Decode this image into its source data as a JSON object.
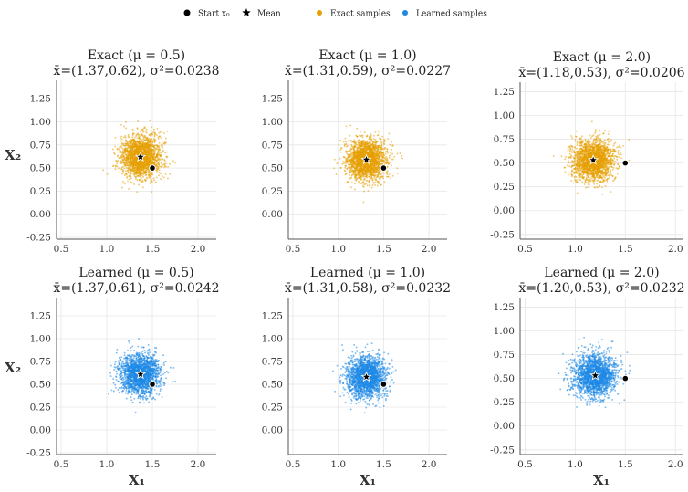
{
  "legend": [
    {
      "label": "Start x₀",
      "marker": "dot",
      "color": "#000000"
    },
    {
      "label": "Mean",
      "marker": "star",
      "color": "#000000"
    },
    {
      "label": "Exact samples",
      "marker": "dot",
      "color": "#E69F00"
    },
    {
      "label": "Learned samples",
      "marker": "dot",
      "color": "#1E88E5"
    }
  ],
  "colors": {
    "exact": "#E69F00",
    "learned": "#1E88E5",
    "grid": "#e6e6e6"
  },
  "axis_labels": {
    "x": "X₁",
    "y": "X₂"
  },
  "chart_data": [
    {
      "type": "scatter",
      "row": 0,
      "col": 0,
      "kind": "exact",
      "title": "Exact (μ = 0.5)",
      "subtitle": "x̄=(1.37,0.62), σ²=0.0238",
      "mean": [
        1.37,
        0.62
      ],
      "variance": 0.0238,
      "start": [
        1.5,
        0.5
      ],
      "xlim": [
        0.45,
        2.2
      ],
      "ylim": [
        -0.27,
        1.45
      ],
      "xticks": [
        0.5,
        1.0,
        1.5,
        2.0
      ],
      "yticks": [
        -0.25,
        0.0,
        0.25,
        0.5,
        0.75,
        1.0,
        1.25
      ],
      "xtick_labels": [
        "0.5",
        "1.0",
        "1.5",
        "2.0"
      ],
      "ytick_labels": [
        "-0.25",
        "0.00",
        "0.25",
        "0.50",
        "0.75",
        "1.00",
        "1.25"
      ],
      "n_samples": 2000
    },
    {
      "type": "scatter",
      "row": 0,
      "col": 1,
      "kind": "exact",
      "title": "Exact (μ = 1.0)",
      "subtitle": "x̄=(1.31,0.59), σ²=0.0227",
      "mean": [
        1.31,
        0.59
      ],
      "variance": 0.0227,
      "start": [
        1.5,
        0.5
      ],
      "xlim": [
        0.45,
        2.2
      ],
      "ylim": [
        -0.27,
        1.45
      ],
      "xticks": [
        0.5,
        1.0,
        1.5,
        2.0
      ],
      "yticks": [
        0.0,
        0.25,
        0.5,
        0.75,
        1.0,
        1.25
      ],
      "xtick_labels": [
        "0.5",
        "1.0",
        "1.5",
        "2.0"
      ],
      "ytick_labels": [
        "0.00",
        "0.25",
        "0.50",
        "0.75",
        "1.00",
        "1.25"
      ],
      "n_samples": 2000
    },
    {
      "type": "scatter",
      "row": 0,
      "col": 2,
      "kind": "exact",
      "title": "Exact (μ = 2.0)",
      "subtitle": "x̄=(1.18,0.53), σ²=0.0206",
      "mean": [
        1.18,
        0.53
      ],
      "variance": 0.0206,
      "start": [
        1.5,
        0.5
      ],
      "xlim": [
        0.45,
        2.08
      ],
      "ylim": [
        -0.3,
        1.35
      ],
      "xticks": [
        0.5,
        1.0,
        1.5,
        2.0
      ],
      "yticks": [
        -0.25,
        0.0,
        0.25,
        0.5,
        0.75,
        1.0,
        1.25
      ],
      "xtick_labels": [
        "0.5",
        "1.0",
        "1.5",
        "2.0"
      ],
      "ytick_labels": [
        "-0.25",
        "0.00",
        "0.25",
        "0.50",
        "0.75",
        "1.00",
        "1.25"
      ],
      "n_samples": 2000
    },
    {
      "type": "scatter",
      "row": 1,
      "col": 0,
      "kind": "learned",
      "title": "Learned (μ = 0.5)",
      "subtitle": "x̄=(1.37,0.61), σ²=0.0242",
      "mean": [
        1.37,
        0.61
      ],
      "variance": 0.0242,
      "start": [
        1.5,
        0.5
      ],
      "xlim": [
        0.45,
        2.2
      ],
      "ylim": [
        -0.27,
        1.45
      ],
      "xticks": [
        0.5,
        1.0,
        1.5,
        2.0
      ],
      "yticks": [
        -0.25,
        0.0,
        0.25,
        0.5,
        0.75,
        1.0,
        1.25
      ],
      "xtick_labels": [
        "0.5",
        "1.0",
        "1.5",
        "2.0"
      ],
      "ytick_labels": [
        "-0.25",
        "0.00",
        "0.25",
        "0.50",
        "0.75",
        "1.00",
        "1.25"
      ],
      "n_samples": 2000
    },
    {
      "type": "scatter",
      "row": 1,
      "col": 1,
      "kind": "learned",
      "title": "Learned (μ = 1.0)",
      "subtitle": "x̄=(1.31,0.58), σ²=0.0232",
      "mean": [
        1.31,
        0.58
      ],
      "variance": 0.0232,
      "start": [
        1.5,
        0.5
      ],
      "xlim": [
        0.45,
        2.2
      ],
      "ylim": [
        -0.27,
        1.45
      ],
      "xticks": [
        0.5,
        1.0,
        1.5,
        2.0
      ],
      "yticks": [
        0.0,
        0.25,
        0.5,
        0.75,
        1.0,
        1.25
      ],
      "xtick_labels": [
        "0.5",
        "1.0",
        "1.5",
        "2.0"
      ],
      "ytick_labels": [
        "0.00",
        "0.25",
        "0.50",
        "0.75",
        "1.00",
        "1.25"
      ],
      "n_samples": 2000
    },
    {
      "type": "scatter",
      "row": 1,
      "col": 2,
      "kind": "learned",
      "title": "Learned (μ = 2.0)",
      "subtitle": "x̄=(1.20,0.53), σ²=0.0232",
      "mean": [
        1.2,
        0.53
      ],
      "variance": 0.0232,
      "start": [
        1.5,
        0.5
      ],
      "xlim": [
        0.45,
        2.08
      ],
      "ylim": [
        -0.3,
        1.35
      ],
      "xticks": [
        0.5,
        1.0,
        1.5,
        2.0
      ],
      "yticks": [
        -0.25,
        0.0,
        0.25,
        0.5,
        0.75,
        1.0,
        1.25
      ],
      "xtick_labels": [
        "0.5",
        "1.0",
        "1.5",
        "2.0"
      ],
      "ytick_labels": [
        "-0.25",
        "0.00",
        "0.25",
        "0.50",
        "0.75",
        "1.00",
        "1.25"
      ],
      "n_samples": 2000
    }
  ]
}
